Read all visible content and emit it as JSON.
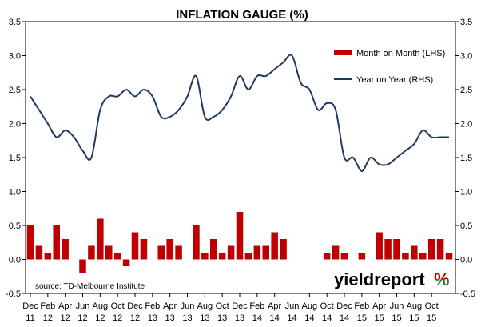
{
  "chart_data": {
    "type": "bar+line",
    "title": "INFLATION GAUGE (%)",
    "x_labels": [
      [
        "Dec",
        "11"
      ],
      [
        "Feb",
        "12"
      ],
      [
        "Apr",
        "12"
      ],
      [
        "Jun",
        "12"
      ],
      [
        "Aug",
        "12"
      ],
      [
        "Oct",
        "12"
      ],
      [
        "Dec",
        "12"
      ],
      [
        "Feb",
        "13"
      ],
      [
        "Apr",
        "13"
      ],
      [
        "Jun",
        "13"
      ],
      [
        "Aug",
        "13"
      ],
      [
        "Oct",
        "13"
      ],
      [
        "Dec",
        "13"
      ],
      [
        "Feb",
        "14"
      ],
      [
        "Apr",
        "14"
      ],
      [
        "Jun",
        "14"
      ],
      [
        "Aug",
        "14"
      ],
      [
        "Oct",
        "14"
      ],
      [
        "Dec",
        "14"
      ],
      [
        "Feb",
        "15"
      ],
      [
        "Apr",
        "15"
      ],
      [
        "Jun",
        "15"
      ],
      [
        "Aug",
        "15"
      ],
      [
        "Oct",
        "15"
      ]
    ],
    "left_axis": {
      "min": -0.5,
      "max": 3.5,
      "ticks": [
        "-0.5",
        "0.0",
        "0.5",
        "1.0",
        "1.5",
        "2.0",
        "2.5",
        "3.0",
        "3.5"
      ]
    },
    "right_axis": {
      "min": -0.5,
      "max": 3.5,
      "ticks": [
        "-0.5",
        "0.0",
        "0.5",
        "1.0",
        "1.5",
        "2.0",
        "2.5",
        "3.0",
        "3.5"
      ]
    },
    "series": [
      {
        "name": "Month on Month (LHS)",
        "type": "bar",
        "axis": "left",
        "color": "#c00000",
        "values": [
          0.5,
          0.2,
          0.1,
          0.5,
          0.3,
          0.0,
          -0.2,
          0.2,
          0.6,
          0.2,
          0.1,
          -0.1,
          0.4,
          0.3,
          0.0,
          0.2,
          0.3,
          0.2,
          0.0,
          0.5,
          0.1,
          0.3,
          0.1,
          0.2,
          0.7,
          0.1,
          0.2,
          0.2,
          0.4,
          0.3,
          0.0,
          0.0,
          0.0,
          0.0,
          0.1,
          0.2,
          0.1,
          0.0,
          0.1,
          0.0,
          0.4,
          0.3,
          0.3,
          0.1,
          0.2,
          0.1,
          0.3,
          0.3,
          0.1
        ]
      },
      {
        "name": "Year on Year (RHS)",
        "type": "line",
        "axis": "right",
        "color": "#1f3864",
        "values": [
          2.4,
          2.2,
          2.0,
          1.8,
          1.9,
          1.8,
          1.6,
          1.5,
          2.2,
          2.4,
          2.4,
          2.5,
          2.4,
          2.5,
          2.4,
          2.1,
          2.1,
          2.2,
          2.4,
          2.7,
          2.1,
          2.1,
          2.2,
          2.4,
          2.7,
          2.5,
          2.7,
          2.7,
          2.8,
          2.9,
          3.0,
          2.6,
          2.5,
          2.2,
          2.3,
          2.2,
          1.5,
          1.5,
          1.3,
          1.5,
          1.4,
          1.4,
          1.5,
          1.6,
          1.7,
          1.9,
          1.8,
          1.8,
          1.8
        ]
      }
    ],
    "legend": {
      "position": "top-right"
    },
    "source_note": "source: TD-Melbourne Institute",
    "brand": {
      "text": "yieldreport",
      "color": "#000000",
      "percent_symbol": "%",
      "percent_color_top": "#c00000",
      "percent_color_bottom": "#2e7d32"
    }
  }
}
